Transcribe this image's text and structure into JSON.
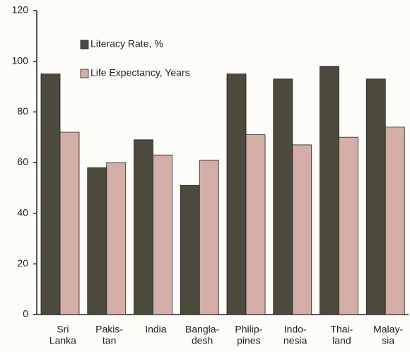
{
  "chart_data": {
    "type": "bar",
    "categories": [
      [
        "Sri",
        "Lanka"
      ],
      [
        "Pakis-",
        "tan"
      ],
      [
        "India"
      ],
      [
        "Bangla-",
        "desh"
      ],
      [
        "Philip-",
        "pines"
      ],
      [
        "Indo-",
        "nesia"
      ],
      [
        "Thai-",
        "land"
      ],
      [
        "Malay-",
        "sia"
      ]
    ],
    "series": [
      {
        "name": "Literacy Rate, %",
        "color": "#4b4a3c",
        "values": [
          95,
          58,
          69,
          51,
          95,
          93,
          98,
          93
        ]
      },
      {
        "name": "Life Expectancy, Years",
        "color": "#d2aea6",
        "values": [
          72,
          60,
          63,
          61,
          71,
          67,
          70,
          74
        ]
      }
    ],
    "ylim": [
      0,
      120
    ],
    "yticks": [
      0,
      20,
      40,
      60,
      80,
      100,
      120
    ]
  }
}
